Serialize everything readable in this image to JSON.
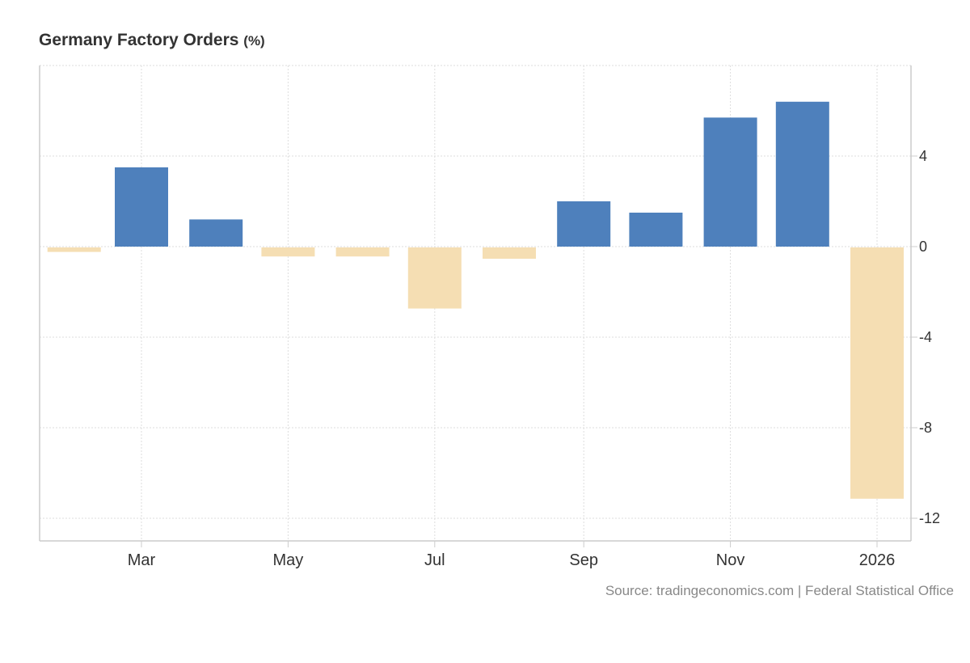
{
  "chart_data": {
    "type": "bar",
    "title": "Germany Factory Orders",
    "unit": "(%)",
    "categories": [
      "Feb 2025",
      "Mar 2025",
      "Apr 2025",
      "May 2025",
      "Jun 2025",
      "Jul 2025",
      "Aug 2025",
      "Sep 2025",
      "Oct 2025",
      "Nov 2025",
      "Dec 2025",
      "Jan 2026"
    ],
    "values": [
      -0.2,
      3.5,
      1.2,
      -0.4,
      -0.4,
      -2.7,
      -0.5,
      2.0,
      1.5,
      5.7,
      6.4,
      -11.1
    ],
    "x_tick_labels": [
      "Mar",
      "May",
      "Jul",
      "Sep",
      "Nov",
      "2026"
    ],
    "y_ticks": [
      4,
      0,
      -4,
      -8,
      -12
    ],
    "ylim": [
      -13,
      8
    ],
    "xlabel": "",
    "ylabel": "",
    "grid": true,
    "colors": {
      "positive": "#4e80bc",
      "negative": "#f5deb3"
    },
    "source": "Source: tradingeconomics.com | Federal Statistical Office"
  }
}
